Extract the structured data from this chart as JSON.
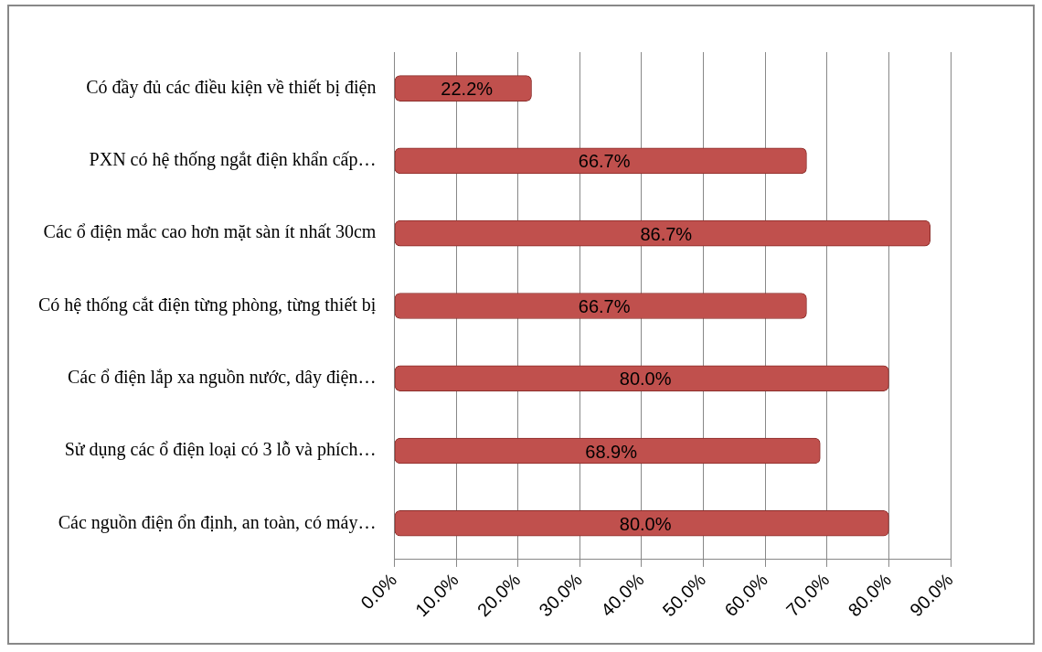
{
  "chart_data": {
    "type": "bar",
    "orientation": "horizontal",
    "categories": [
      "Có đầy đủ các điều kiện về thiết bị điện",
      "PXN có hệ thống ngắt điện khẩn cấp…",
      "Các ổ điện mắc cao hơn mặt sàn ít nhất 30cm",
      "Có hệ thống cắt điện từng phòng, từng thiết bị",
      "Các ổ điện lắp xa nguồn nước, dây điện…",
      "Sử dụng các ổ điện loại có 3 lỗ và phích…",
      "Các nguồn điện ổn định, an toàn, có máy…"
    ],
    "values": [
      22.2,
      66.7,
      86.7,
      66.7,
      80.0,
      68.9,
      80.0
    ],
    "value_labels": [
      "22.2%",
      "66.7%",
      "86.7%",
      "66.7%",
      "80.0%",
      "68.9%",
      "80.0%"
    ],
    "color": "#c0504d",
    "xlim": [
      0,
      90
    ],
    "xticks": [
      {
        "value": 0,
        "label": "0.0%"
      },
      {
        "value": 10,
        "label": "10.0%"
      },
      {
        "value": 20,
        "label": "20.0%"
      },
      {
        "value": 30,
        "label": "30.0%"
      },
      {
        "value": 40,
        "label": "40.0%"
      },
      {
        "value": 50,
        "label": "50.0%"
      },
      {
        "value": 60,
        "label": "60.0%"
      },
      {
        "value": 70,
        "label": "70.0%"
      },
      {
        "value": 80,
        "label": "80.0%"
      },
      {
        "value": 90,
        "label": "90.0%"
      }
    ],
    "grid": "x",
    "legend": false
  }
}
